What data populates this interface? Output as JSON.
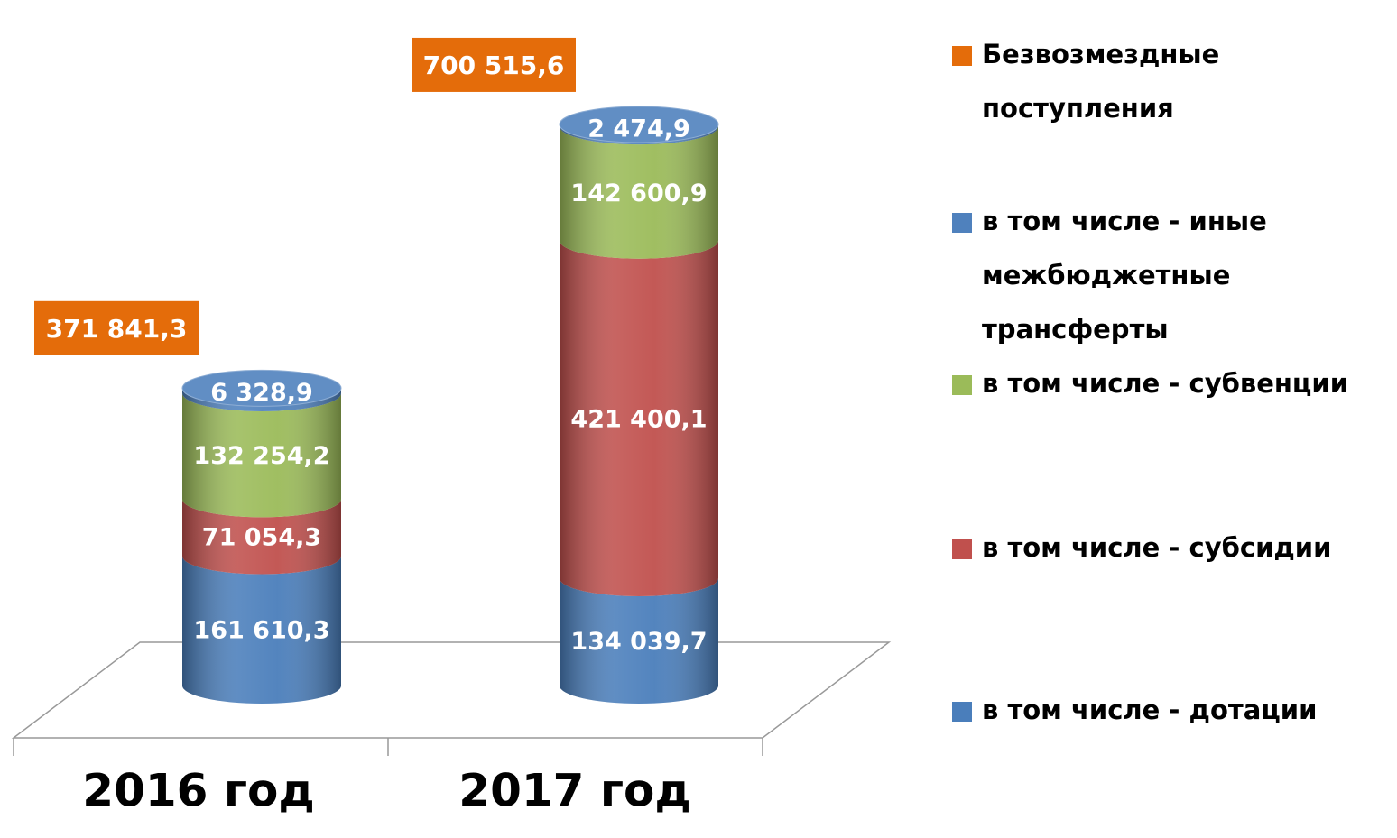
{
  "chart_data": {
    "type": "cylinder-stacked-bar",
    "categories": [
      "2016 год",
      "2017 год"
    ],
    "total": {
      "name": "Безвозмездные поступления",
      "color": "#e46c0a",
      "values": [
        371841.3,
        700515.6
      ],
      "value_labels": [
        "371 841,3",
        "700 515,6"
      ]
    },
    "series": [
      {
        "name": "в том числе - иные межбюджетные трансферты",
        "color": "#4f81bd",
        "values": [
          6328.9,
          2474.9
        ],
        "value_labels": [
          "6 328,9",
          "2 474,9"
        ]
      },
      {
        "name": "в том числе - субвенции",
        "color": "#9bbb59",
        "values": [
          132254.2,
          142600.9
        ],
        "value_labels": [
          "132 254,2",
          "142 600,9"
        ]
      },
      {
        "name": "в том числе - субсидии",
        "color": "#c0504d",
        "values": [
          71054.3,
          421400.1
        ],
        "value_labels": [
          "71 054,3",
          "421 400,1"
        ]
      },
      {
        "name": "в том числе - дотации",
        "color": "#4a7ebb",
        "values": [
          161610.3,
          134039.7
        ],
        "value_labels": [
          "161 610,3",
          "134 039,7"
        ]
      }
    ]
  }
}
